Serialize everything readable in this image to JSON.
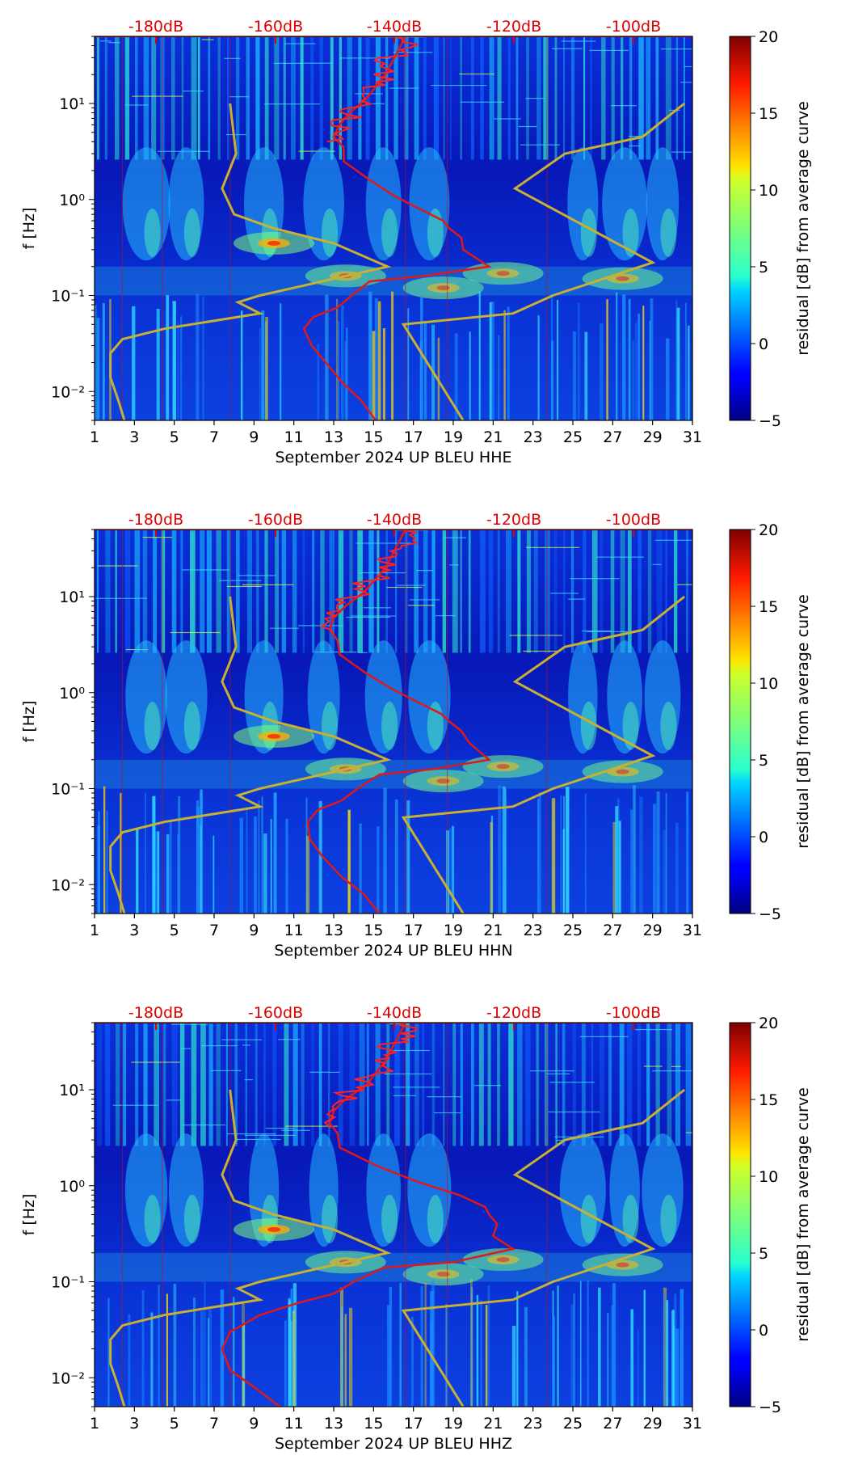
{
  "chart_data": [
    {
      "type": "heatmap",
      "xlabel": "September 2024 UP BLEU  HHE",
      "ylabel": "f [Hz]",
      "x_ticks": [
        "1",
        "3",
        "5",
        "7",
        "9",
        "11",
        "13",
        "15",
        "17",
        "19",
        "21",
        "23",
        "25",
        "27",
        "29",
        "31"
      ],
      "xlim": [
        1,
        31
      ],
      "y_ticks": [
        "10⁻²",
        "10⁻¹",
        "10⁰",
        "10¹"
      ],
      "ylim": [
        0.005,
        50
      ],
      "y_scale": "log",
      "db_scale_labels": [
        "-180dB",
        "-160dB",
        "-140dB",
        "-120dB",
        "-100dB"
      ],
      "colorbar": {
        "label": "residual [dB] from average curve",
        "ticks": [
          "20",
          "15",
          "10",
          "5",
          "0",
          "−5"
        ],
        "range": [
          -5,
          20
        ]
      },
      "red_curve": [
        [
          15.1,
          0.005
        ],
        [
          14.4,
          0.008
        ],
        [
          13.5,
          0.012
        ],
        [
          12.6,
          0.02
        ],
        [
          11.9,
          0.03
        ],
        [
          11.5,
          0.045
        ],
        [
          12,
          0.06
        ],
        [
          13.2,
          0.075
        ],
        [
          13.9,
          0.1
        ],
        [
          14.8,
          0.14
        ],
        [
          17.5,
          0.16
        ],
        [
          20.8,
          0.2
        ],
        [
          19.5,
          0.3
        ],
        [
          19.4,
          0.4
        ],
        [
          18.8,
          0.5
        ],
        [
          18.5,
          0.6
        ],
        [
          17.3,
          0.8
        ],
        [
          16,
          1.1
        ],
        [
          14.8,
          1.6
        ],
        [
          13.5,
          2.5
        ],
        [
          13.5,
          3.5
        ],
        [
          13,
          4.5
        ],
        [
          13.3,
          6
        ],
        [
          13.8,
          8
        ],
        [
          14.6,
          11
        ],
        [
          15.6,
          20
        ],
        [
          16.6,
          50
        ]
      ],
      "yellow_curve_left": [
        [
          2.5,
          0.005
        ],
        [
          2.2,
          0.008
        ],
        [
          1.8,
          0.014
        ],
        [
          1.8,
          0.025
        ],
        [
          2.4,
          0.035
        ],
        [
          4.5,
          0.045
        ],
        [
          9.3,
          0.065
        ],
        [
          8.2,
          0.085
        ],
        [
          9.3,
          0.1
        ],
        [
          15.7,
          0.2
        ],
        [
          13,
          0.35
        ],
        [
          10,
          0.5
        ],
        [
          8,
          0.7
        ],
        [
          7.4,
          1.3
        ],
        [
          8.1,
          3
        ],
        [
          7.8,
          10
        ]
      ],
      "yellow_curve_right": [
        [
          19.5,
          0.005
        ],
        [
          16.5,
          0.05
        ],
        [
          22,
          0.065
        ],
        [
          24,
          0.1
        ],
        [
          29,
          0.22
        ],
        [
          22.1,
          1.3
        ],
        [
          24.6,
          3
        ],
        [
          28.5,
          4.5
        ],
        [
          30.6,
          10
        ]
      ]
    },
    {
      "type": "heatmap",
      "xlabel": "September 2024 UP BLEU  HHN",
      "ylabel": "f [Hz]",
      "x_ticks": [
        "1",
        "3",
        "5",
        "7",
        "9",
        "11",
        "13",
        "15",
        "17",
        "19",
        "21",
        "23",
        "25",
        "27",
        "29",
        "31"
      ],
      "xlim": [
        1,
        31
      ],
      "y_ticks": [
        "10⁻²",
        "10⁻¹",
        "10⁰",
        "10¹"
      ],
      "ylim": [
        0.005,
        50
      ],
      "y_scale": "log",
      "db_scale_labels": [
        "-180dB",
        "-160dB",
        "-140dB",
        "-120dB",
        "-100dB"
      ],
      "colorbar": {
        "label": "residual [dB] from average curve",
        "ticks": [
          "20",
          "15",
          "10",
          "5",
          "0",
          "−5"
        ],
        "range": [
          -5,
          20
        ]
      },
      "red_curve": [
        [
          15.3,
          0.005
        ],
        [
          14.5,
          0.008
        ],
        [
          13.4,
          0.012
        ],
        [
          12.4,
          0.02
        ],
        [
          11.8,
          0.03
        ],
        [
          11.7,
          0.045
        ],
        [
          12.2,
          0.06
        ],
        [
          13.4,
          0.075
        ],
        [
          14.2,
          0.1
        ],
        [
          15.3,
          0.14
        ],
        [
          18,
          0.16
        ],
        [
          20.8,
          0.2
        ],
        [
          19.8,
          0.3
        ],
        [
          19.4,
          0.4
        ],
        [
          18.8,
          0.5
        ],
        [
          18.4,
          0.6
        ],
        [
          17.2,
          0.8
        ],
        [
          15.9,
          1.1
        ],
        [
          14.6,
          1.6
        ],
        [
          13.3,
          2.5
        ],
        [
          13.2,
          3.5
        ],
        [
          12.8,
          4.5
        ],
        [
          13,
          6
        ],
        [
          13.6,
          8
        ],
        [
          14.5,
          11
        ],
        [
          15.6,
          20
        ],
        [
          16.6,
          50
        ]
      ],
      "yellow_curve_left": [
        [
          2.5,
          0.005
        ],
        [
          2.2,
          0.008
        ],
        [
          1.8,
          0.014
        ],
        [
          1.8,
          0.025
        ],
        [
          2.4,
          0.035
        ],
        [
          4.5,
          0.045
        ],
        [
          9.3,
          0.065
        ],
        [
          8.2,
          0.085
        ],
        [
          9.3,
          0.1
        ],
        [
          15.7,
          0.2
        ],
        [
          13,
          0.35
        ],
        [
          10,
          0.5
        ],
        [
          8,
          0.7
        ],
        [
          7.4,
          1.3
        ],
        [
          8.1,
          3
        ],
        [
          7.8,
          10
        ]
      ],
      "yellow_curve_right": [
        [
          19.5,
          0.005
        ],
        [
          16.5,
          0.05
        ],
        [
          22,
          0.065
        ],
        [
          24,
          0.1
        ],
        [
          29,
          0.22
        ],
        [
          22.1,
          1.3
        ],
        [
          24.6,
          3
        ],
        [
          28.5,
          4.5
        ],
        [
          30.6,
          10
        ]
      ]
    },
    {
      "type": "heatmap",
      "xlabel": "September 2024 UP BLEU  HHZ",
      "ylabel": "f [Hz]",
      "x_ticks": [
        "1",
        "3",
        "5",
        "7",
        "9",
        "11",
        "13",
        "15",
        "17",
        "19",
        "21",
        "23",
        "25",
        "27",
        "29",
        "31"
      ],
      "xlim": [
        1,
        31
      ],
      "y_ticks": [
        "10⁻²",
        "10⁻¹",
        "10⁰",
        "10¹"
      ],
      "ylim": [
        0.005,
        50
      ],
      "y_scale": "log",
      "db_scale_labels": [
        "-180dB",
        "-160dB",
        "-140dB",
        "-120dB",
        "-100dB"
      ],
      "colorbar": {
        "label": "residual [dB] from average curve",
        "ticks": [
          "20",
          "15",
          "10",
          "5",
          "0",
          "−5"
        ],
        "range": [
          -5,
          20
        ]
      },
      "red_curve": [
        [
          10.3,
          0.005
        ],
        [
          9,
          0.008
        ],
        [
          7.8,
          0.012
        ],
        [
          7.4,
          0.02
        ],
        [
          7.8,
          0.03
        ],
        [
          9.3,
          0.045
        ],
        [
          11.2,
          0.06
        ],
        [
          13,
          0.075
        ],
        [
          14,
          0.1
        ],
        [
          15.5,
          0.14
        ],
        [
          19,
          0.16
        ],
        [
          22,
          0.22
        ],
        [
          21,
          0.3
        ],
        [
          21.2,
          0.4
        ],
        [
          20.8,
          0.5
        ],
        [
          20.6,
          0.6
        ],
        [
          19.3,
          0.8
        ],
        [
          17.2,
          1.1
        ],
        [
          15.2,
          1.6
        ],
        [
          13.3,
          2.5
        ],
        [
          13.2,
          3.5
        ],
        [
          12.8,
          4.5
        ],
        [
          13,
          6
        ],
        [
          13.6,
          8
        ],
        [
          14.6,
          11
        ],
        [
          15.6,
          20
        ],
        [
          16.6,
          50
        ]
      ],
      "yellow_curve_left": [
        [
          2.5,
          0.005
        ],
        [
          2.2,
          0.008
        ],
        [
          1.8,
          0.014
        ],
        [
          1.8,
          0.025
        ],
        [
          2.4,
          0.035
        ],
        [
          4.5,
          0.045
        ],
        [
          9.3,
          0.065
        ],
        [
          8.2,
          0.085
        ],
        [
          9.3,
          0.1
        ],
        [
          15.7,
          0.2
        ],
        [
          13,
          0.35
        ],
        [
          10,
          0.5
        ],
        [
          8,
          0.7
        ],
        [
          7.4,
          1.3
        ],
        [
          8.1,
          3
        ],
        [
          7.8,
          10
        ]
      ],
      "yellow_curve_right": [
        [
          19.5,
          0.005
        ],
        [
          16.5,
          0.05
        ],
        [
          22,
          0.065
        ],
        [
          24,
          0.1
        ],
        [
          29,
          0.22
        ],
        [
          22.1,
          1.3
        ],
        [
          24.6,
          3
        ],
        [
          28.5,
          4.5
        ],
        [
          30.6,
          10
        ]
      ]
    }
  ]
}
